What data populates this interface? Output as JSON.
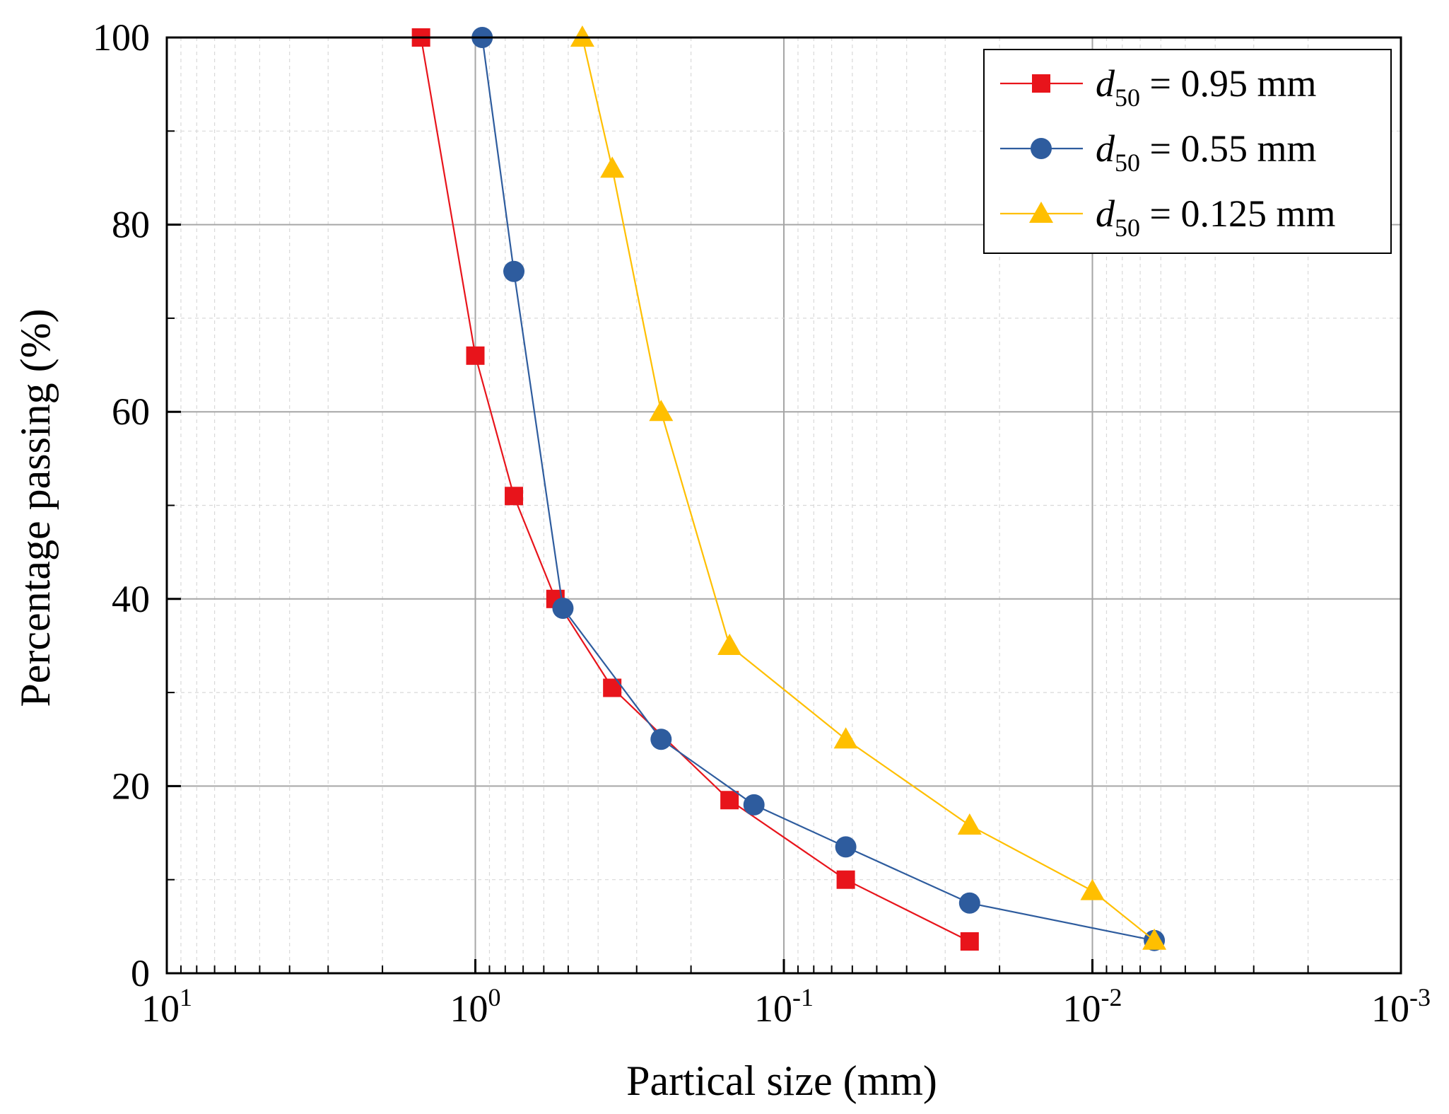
{
  "chart_data": {
    "type": "line",
    "x_scale": "log",
    "x_reversed": true,
    "xlabel": "Partical size (mm)",
    "ylabel": "Percentage passing (%)",
    "xlim": [
      10,
      0.001
    ],
    "ylim": [
      0,
      100
    ],
    "x_ticks": [
      {
        "value": 10,
        "base": "10",
        "exp": "1"
      },
      {
        "value": 1,
        "base": "10",
        "exp": "0"
      },
      {
        "value": 0.1,
        "base": "10",
        "exp": "-1"
      },
      {
        "value": 0.01,
        "base": "10",
        "exp": "-2"
      },
      {
        "value": 0.001,
        "base": "10",
        "exp": "-3"
      }
    ],
    "y_ticks": [
      "0",
      "20",
      "40",
      "60",
      "80",
      "100"
    ],
    "grid": true,
    "legend_position": "top-right",
    "series": [
      {
        "name_symbol": "d",
        "name_sub": "50",
        "name_rest": "= 0.95 mm",
        "color": "#e8141b",
        "marker": "square",
        "x": [
          1.5,
          1.0,
          0.75,
          0.55,
          0.36,
          0.15,
          0.063,
          0.025
        ],
        "y": [
          100,
          66,
          51,
          40,
          30.5,
          18.5,
          10,
          3.4
        ]
      },
      {
        "name_symbol": "d",
        "name_sub": "50",
        "name_rest": "= 0.55 mm",
        "color": "#2e5c9e",
        "marker": "circle",
        "x": [
          0.95,
          0.75,
          0.52,
          0.25,
          0.125,
          0.063,
          0.025,
          0.0063
        ],
        "y": [
          100,
          75,
          39,
          25,
          18,
          13.5,
          7.5,
          3.5
        ]
      },
      {
        "name_symbol": "d",
        "name_sub": "50",
        "name_rest": "= 0.125 mm",
        "color": "#ffbf00",
        "marker": "triangle",
        "x": [
          0.45,
          0.36,
          0.25,
          0.15,
          0.063,
          0.025,
          0.01,
          0.0063
        ],
        "y": [
          100,
          86,
          60,
          35,
          25,
          15.8,
          8.8,
          3.5
        ]
      }
    ]
  }
}
